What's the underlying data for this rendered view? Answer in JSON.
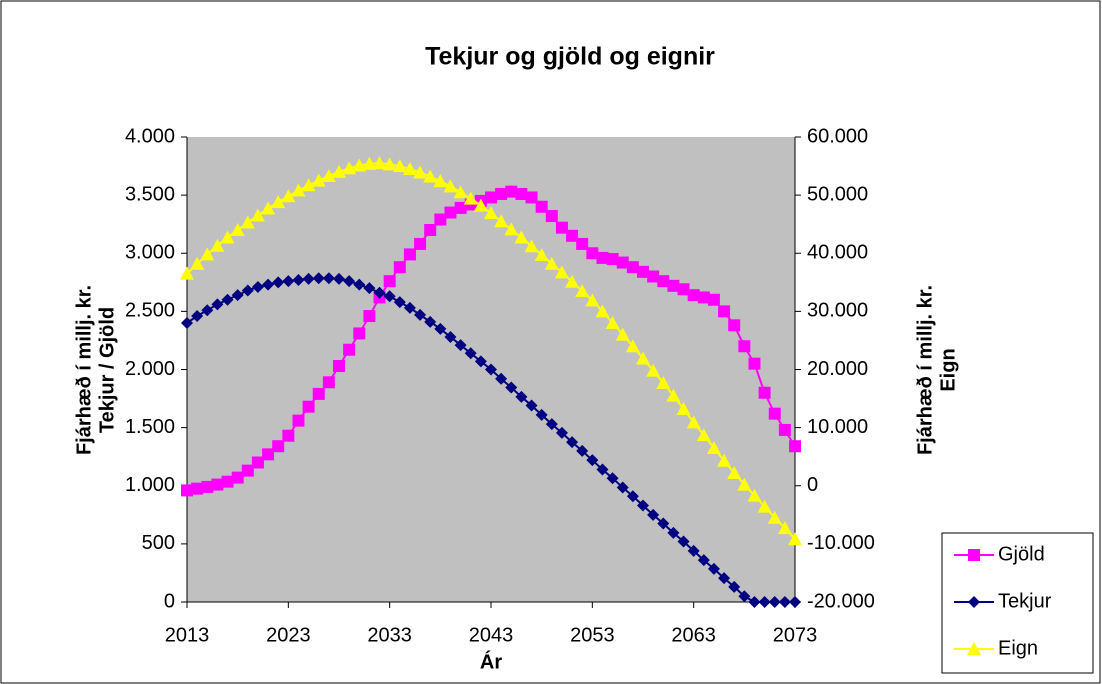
{
  "chart_data": {
    "type": "line",
    "title": "Tekjur og gjöld og eignir",
    "x_label": "Ár",
    "y_label": [
      "Fjárhæð í millj. kr.",
      "Tekjur / Gjöld"
    ],
    "y2_label": [
      "Fjárhæð í millj. kr.",
      "Eign"
    ],
    "x": [
      2013,
      2014,
      2015,
      2016,
      2017,
      2018,
      2019,
      2020,
      2021,
      2022,
      2023,
      2024,
      2025,
      2026,
      2027,
      2028,
      2029,
      2030,
      2031,
      2032,
      2033,
      2034,
      2035,
      2036,
      2037,
      2038,
      2039,
      2040,
      2041,
      2042,
      2043,
      2044,
      2045,
      2046,
      2047,
      2048,
      2049,
      2050,
      2051,
      2052,
      2053,
      2054,
      2055,
      2056,
      2057,
      2058,
      2059,
      2060,
      2061,
      2062,
      2063,
      2064,
      2065,
      2066,
      2067,
      2068,
      2069,
      2070,
      2071,
      2072,
      2073
    ],
    "xlim": [
      2013,
      2073
    ],
    "xticks": [
      2013,
      2023,
      2033,
      2043,
      2053,
      2063,
      2073
    ],
    "ylim": [
      0,
      4000
    ],
    "yticks": [
      0,
      {
        "value": 500,
        "label": "500"
      },
      {
        "value": 1000,
        "label": "1.000"
      },
      {
        "value": 1500,
        "label": "1.500"
      },
      {
        "value": 2000,
        "label": "2.000"
      },
      {
        "value": 2500,
        "label": "2.500"
      },
      {
        "value": 3000,
        "label": "3.000"
      },
      {
        "value": 3500,
        "label": "3.500"
      },
      {
        "value": 4000,
        "label": "4.000"
      }
    ],
    "y2lim": [
      -20000,
      60000
    ],
    "y2ticks": [
      {
        "value": -20000,
        "label": "-20.000"
      },
      {
        "value": -10000,
        "label": "-10.000"
      },
      0,
      {
        "value": 10000,
        "label": "10.000"
      },
      {
        "value": 20000,
        "label": "20.000"
      },
      {
        "value": 30000,
        "label": "30.000"
      },
      {
        "value": 40000,
        "label": "40.000"
      },
      {
        "value": 50000,
        "label": "50.000"
      },
      {
        "value": 60000,
        "label": "60.000"
      }
    ],
    "legend": "right",
    "plot_background": "#c0c0c0",
    "series": [
      {
        "name": "Gjöld",
        "color": "#ff00ff",
        "marker": "square",
        "values": [
          960,
          975,
          990,
          1010,
          1035,
          1070,
          1130,
          1200,
          1270,
          1340,
          1430,
          1560,
          1680,
          1790,
          1890,
          2030,
          2170,
          2310,
          2460,
          2620,
          2760,
          2880,
          2990,
          3080,
          3200,
          3290,
          3350,
          3390,
          3420,
          3450,
          3480,
          3510,
          3530,
          3510,
          3480,
          3400,
          3320,
          3220,
          3150,
          3080,
          3000,
          2960,
          2950,
          2920,
          2880,
          2840,
          2800,
          2760,
          2720,
          2690,
          2640,
          2620,
          2600,
          2500,
          2380,
          2200,
          2050,
          1800,
          1620,
          1480,
          1340
        ]
      },
      {
        "name": "Tekjur",
        "color": "#000080",
        "marker": "diamond",
        "values": [
          2400,
          2460,
          2510,
          2560,
          2600,
          2640,
          2680,
          2710,
          2730,
          2750,
          2760,
          2770,
          2780,
          2785,
          2785,
          2780,
          2760,
          2730,
          2700,
          2660,
          2630,
          2580,
          2530,
          2470,
          2410,
          2350,
          2280,
          2210,
          2140,
          2070,
          2000,
          1920,
          1845,
          1765,
          1690,
          1610,
          1530,
          1455,
          1375,
          1300,
          1220,
          1140,
          1065,
          985,
          910,
          830,
          750,
          675,
          595,
          520,
          440,
          360,
          285,
          205,
          130,
          50,
          0,
          0,
          0,
          0,
          0
        ]
      },
      {
        "name": "Eign",
        "color": "#ffff00",
        "marker": "triangle",
        "axis": "y2",
        "values": [
          36500,
          38200,
          39800,
          41300,
          42700,
          44000,
          45300,
          46500,
          47700,
          48800,
          49800,
          50800,
          51700,
          52500,
          53300,
          54000,
          54600,
          55100,
          55400,
          55500,
          55300,
          55000,
          54500,
          53900,
          53200,
          52400,
          51500,
          50500,
          49400,
          48200,
          46900,
          45500,
          44100,
          42700,
          41200,
          39700,
          38200,
          36700,
          35100,
          33500,
          31900,
          30000,
          28000,
          26000,
          24000,
          21900,
          19800,
          17700,
          15500,
          13200,
          10900,
          8700,
          6500,
          4300,
          2200,
          200,
          -1700,
          -3600,
          -5500,
          -7300,
          -9200
        ]
      }
    ]
  }
}
